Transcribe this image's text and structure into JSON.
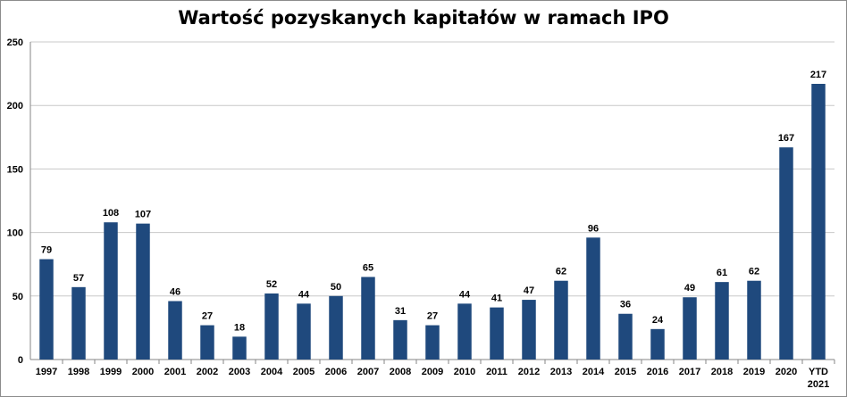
{
  "chart_data": {
    "type": "bar",
    "title": "Wartość pozyskanych kapitałów w ramach IPO",
    "xlabel": "",
    "ylabel": "",
    "ylim": [
      0,
      250
    ],
    "yticks": [
      0,
      50,
      100,
      150,
      200,
      250
    ],
    "grid": true,
    "legend": "none",
    "bar_color": "#1f497d",
    "grid_color": "#c8c8c8",
    "categories": [
      "1997",
      "1998",
      "1999",
      "2000",
      "2001",
      "2002",
      "2003",
      "2004",
      "2005",
      "2006",
      "2007",
      "2008",
      "2009",
      "2010",
      "2011",
      "2012",
      "2013",
      "2014",
      "2015",
      "2016",
      "2017",
      "2018",
      "2019",
      "2020",
      "YTD 2021"
    ],
    "values": [
      79,
      57,
      108,
      107,
      46,
      27,
      18,
      52,
      44,
      50,
      65,
      31,
      27,
      44,
      41,
      47,
      62,
      96,
      36,
      24,
      49,
      61,
      62,
      167,
      217
    ]
  }
}
